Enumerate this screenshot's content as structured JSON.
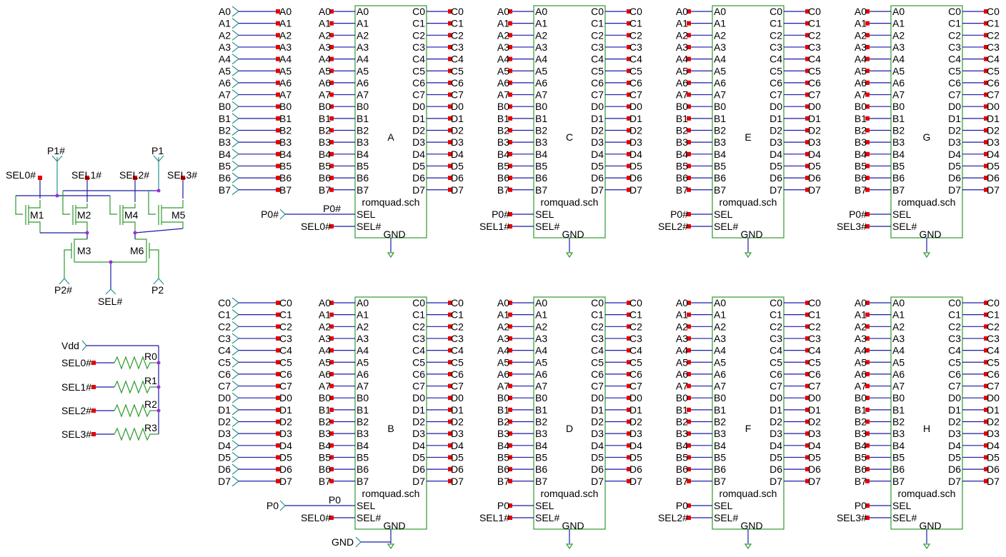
{
  "colors": {
    "wire": "#1a1aa8",
    "bus": "#2a8f8f",
    "component": "#2e9a2e",
    "connector": "#e60000",
    "junction": "#9b2de0"
  },
  "mux": {
    "transistors": [
      "M1",
      "M2",
      "M3",
      "M4",
      "M5",
      "M6"
    ],
    "top_labels": {
      "p1n": "P1#",
      "p1": "P1",
      "sel0": "SEL0#",
      "sel1": "SEL1#",
      "sel2": "SEL2#",
      "sel3": "SEL3#"
    },
    "bottom_labels": {
      "p2n": "P2#",
      "p2": "P2",
      "seln": "SEL#"
    }
  },
  "pullups": {
    "supply": "Vdd",
    "rows": [
      {
        "net": "SEL0#",
        "res": "R0"
      },
      {
        "net": "SEL1#",
        "res": "R1"
      },
      {
        "net": "SEL2#",
        "res": "R2"
      },
      {
        "net": "SEL3#",
        "res": "R3"
      }
    ]
  },
  "bus_top": {
    "pins": [
      "A0",
      "A1",
      "A2",
      "A3",
      "A4",
      "A5",
      "A6",
      "A7",
      "B0",
      "B1",
      "B2",
      "B3",
      "B4",
      "B5",
      "B6",
      "B7"
    ]
  },
  "bus_bottom": {
    "pins": [
      "C0",
      "C1",
      "C2",
      "C3",
      "C4",
      "C5",
      "C6",
      "C7",
      "D0",
      "D1",
      "D2",
      "D3",
      "D4",
      "D5",
      "D6",
      "D7"
    ]
  },
  "gnd_label": "GND",
  "chip_template": {
    "left_pins": [
      "A0",
      "A1",
      "A2",
      "A3",
      "A4",
      "A5",
      "A6",
      "A7",
      "B0",
      "B1",
      "B2",
      "B3",
      "B4",
      "B5",
      "B6",
      "B7"
    ],
    "right_pins": [
      "C0",
      "C1",
      "C2",
      "C3",
      "C4",
      "C5",
      "C6",
      "C7",
      "D0",
      "D1",
      "D2",
      "D3",
      "D4",
      "D5",
      "D6",
      "D7"
    ],
    "left_nets": [
      "A0",
      "A1",
      "A2",
      "A3",
      "A4",
      "A5",
      "A6",
      "A7",
      "B0",
      "B1",
      "B2",
      "B3",
      "B4",
      "B5",
      "B6",
      "B7"
    ],
    "right_nets": [
      "C0",
      "C1",
      "C2",
      "C3",
      "C4",
      "C5",
      "C6",
      "C7",
      "D0",
      "D1",
      "D2",
      "D3",
      "D4",
      "D5",
      "D6",
      "D7"
    ],
    "sel_pin": "SEL",
    "seln_pin": "SEL#",
    "gnd_pin": "GND",
    "file": "romquad.sch"
  },
  "chips": [
    {
      "name": "A",
      "sel_net": "P0#",
      "seln_net": "SEL0#"
    },
    {
      "name": "C",
      "sel_net": "P0#",
      "seln_net": "SEL1#"
    },
    {
      "name": "E",
      "sel_net": "P0#",
      "seln_net": "SEL2#"
    },
    {
      "name": "G",
      "sel_net": "P0#",
      "seln_net": "SEL3#"
    },
    {
      "name": "B",
      "sel_net": "P0",
      "seln_net": "SEL0#"
    },
    {
      "name": "D",
      "sel_net": "P0",
      "seln_net": "SEL1#"
    },
    {
      "name": "F",
      "sel_net": "P0",
      "seln_net": "SEL2#"
    },
    {
      "name": "H",
      "sel_net": "P0",
      "seln_net": "SEL3#"
    }
  ]
}
